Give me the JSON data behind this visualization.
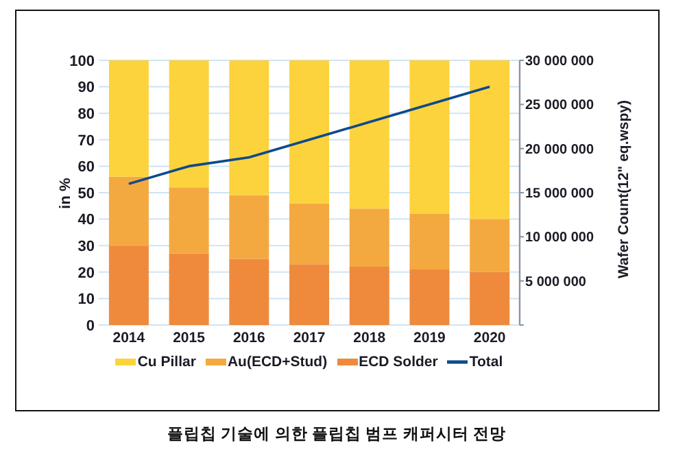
{
  "chart_data": {
    "type": "bar",
    "title": "플립칩 기술에 의한 플립칩 범프 캐퍼시터 전망",
    "ylabel": "in %",
    "y2label": "Wafer Count(12\" eq.wspy)",
    "categories": [
      "2014",
      "2015",
      "2016",
      "2017",
      "2018",
      "2019",
      "2020"
    ],
    "stacked": true,
    "series": [
      {
        "name": "ECD Solder",
        "color": "#ef8a3c",
        "values": [
          30,
          27,
          25,
          23,
          22,
          21,
          20
        ]
      },
      {
        "name": "Au(ECD+Stud)",
        "color": "#f3a940",
        "values": [
          26,
          25,
          24,
          23,
          22,
          21,
          20
        ]
      },
      {
        "name": "Cu Pillar",
        "color": "#fcd33c",
        "values": [
          44,
          48,
          51,
          54,
          56,
          58,
          60
        ]
      },
      {
        "name": "Total",
        "type": "line",
        "axis": "y2",
        "color": "#0d4a8c",
        "values": [
          16000000,
          18000000,
          19000000,
          21000000,
          23000000,
          25000000,
          27000000
        ]
      }
    ],
    "ylim": [
      0,
      100
    ],
    "yticks": [
      0,
      10,
      20,
      30,
      40,
      50,
      60,
      70,
      80,
      90,
      100
    ],
    "y2lim": [
      0,
      30000000
    ],
    "y2ticks": [
      {
        "value": 0,
        "label": null
      },
      {
        "value": 5000000,
        "label": "5 000 000"
      },
      {
        "value": 10000000,
        "label": "10 000 000"
      },
      {
        "value": 15000000,
        "label": "15 000 000"
      },
      {
        "value": 20000000,
        "label": "20 000 000"
      },
      {
        "value": 25000000,
        "label": "25 000 000"
      },
      {
        "value": 30000000,
        "label": "30 000 000"
      }
    ],
    "grid": "y",
    "legend": "bottom",
    "marker": "none",
    "line_style": "solid"
  }
}
